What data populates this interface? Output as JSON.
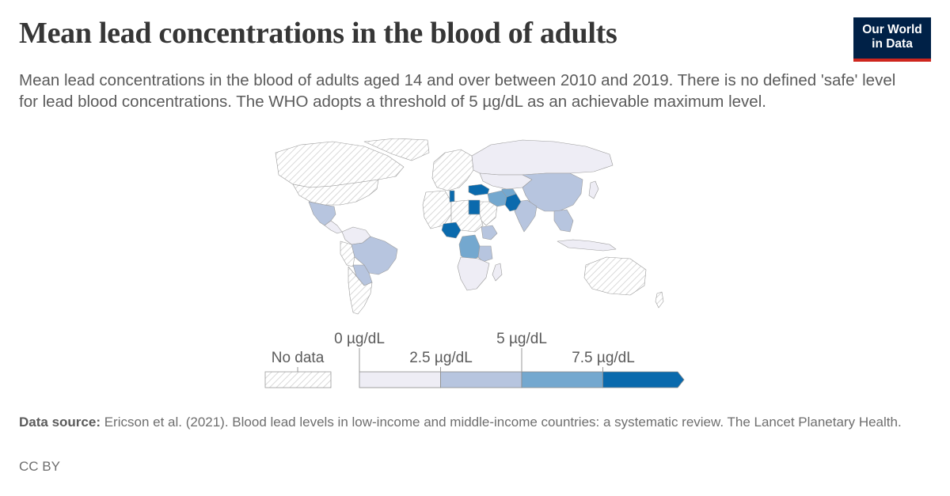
{
  "header": {
    "title": "Mean lead concentrations in the blood of adults",
    "subtitle": "Mean lead concentrations in the blood of adults aged 14 and over between 2010 and 2019. There is no defined 'safe' level for lead blood concentrations. The WHO adopts a threshold of 5 µg/dL as an achievable maximum level.",
    "logo_line1": "Our World",
    "logo_line2": "in Data"
  },
  "colors": {
    "no_data_hatch": "#cfcfcf",
    "bin1": "#eeedf5",
    "bin2": "#b7c5df",
    "bin3": "#74a8cf",
    "bin4": "#0a6aad",
    "outline": "#9a9a9a",
    "brand_navy": "#002147",
    "brand_red": "#ce261e"
  },
  "legend": {
    "no_data_label": "No data",
    "tick_labels_top": [
      "0 µg/dL",
      "5 µg/dL"
    ],
    "tick_labels_bottom": [
      "2.5 µg/dL",
      "7.5 µg/dL"
    ],
    "bins": [
      {
        "from": 0,
        "to": 2.5,
        "color_key": "bin1"
      },
      {
        "from": 2.5,
        "to": 5,
        "color_key": "bin2"
      },
      {
        "from": 5,
        "to": 7.5,
        "color_key": "bin3"
      },
      {
        "from": 7.5,
        "to": null,
        "color_key": "bin4"
      }
    ]
  },
  "map_data": {
    "type": "choropleth",
    "unit": "µg/dL",
    "regions": [
      {
        "id": "canada-greenland-alaska",
        "bin": "no_data"
      },
      {
        "id": "united-states",
        "bin": "no_data"
      },
      {
        "id": "mexico",
        "bin": 2
      },
      {
        "id": "central-america",
        "bin": 1
      },
      {
        "id": "colombia-venezuela",
        "bin": 1
      },
      {
        "id": "peru-ecuador",
        "bin": "no_data"
      },
      {
        "id": "brazil",
        "bin": 2
      },
      {
        "id": "bolivia-paraguay",
        "bin": 2
      },
      {
        "id": "argentina-chile",
        "bin": "no_data"
      },
      {
        "id": "europe",
        "bin": "no_data"
      },
      {
        "id": "russia",
        "bin": 1
      },
      {
        "id": "mongolia-central-asia",
        "bin": 1
      },
      {
        "id": "china",
        "bin": 2
      },
      {
        "id": "india",
        "bin": 2
      },
      {
        "id": "pakistan",
        "bin": 4
      },
      {
        "id": "afghanistan",
        "bin": 3
      },
      {
        "id": "iran",
        "bin": 3
      },
      {
        "id": "turkey",
        "bin": 4
      },
      {
        "id": "arabian-peninsula",
        "bin": "no_data"
      },
      {
        "id": "north-africa-west",
        "bin": "no_data"
      },
      {
        "id": "tunisia",
        "bin": 4
      },
      {
        "id": "egypt",
        "bin": 4
      },
      {
        "id": "nigeria",
        "bin": 4
      },
      {
        "id": "ethiopia",
        "bin": 2
      },
      {
        "id": "dr-congo",
        "bin": 3
      },
      {
        "id": "tanzania",
        "bin": 2
      },
      {
        "id": "southern-africa",
        "bin": 1
      },
      {
        "id": "madagascar",
        "bin": 1
      },
      {
        "id": "southeast-asia",
        "bin": 2
      },
      {
        "id": "indonesia",
        "bin": 1
      },
      {
        "id": "japan",
        "bin": 1
      },
      {
        "id": "australia",
        "bin": "no_data"
      },
      {
        "id": "new-zealand",
        "bin": "no_data"
      }
    ]
  },
  "footer": {
    "source_label": "Data source:",
    "source_text": "Ericson et al. (2021). Blood lead levels in low-income and middle-income countries: a systematic review. The Lancet Planetary Health.",
    "license": "CC BY"
  }
}
